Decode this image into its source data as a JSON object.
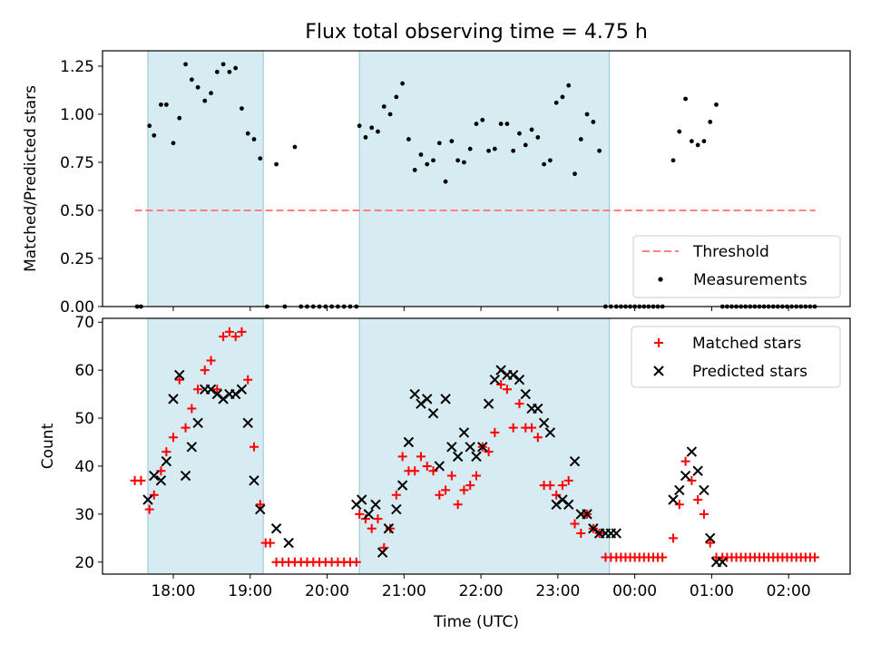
{
  "title": "Flux total observing time = 4.75 h",
  "chart_data": [
    {
      "type": "scatter",
      "ylabel": "Matched/Predicted stars",
      "xlabel": "",
      "xlim": [
        17.08,
        26.8
      ],
      "ylim": [
        0.0,
        1.33
      ],
      "yticks": [
        0.0,
        0.25,
        0.5,
        0.75,
        1.0,
        1.25
      ],
      "ytick_labels": [
        "0.00",
        "0.25",
        "0.50",
        "0.75",
        "1.00",
        "1.25"
      ],
      "shaded_spans": [
        [
          17.67,
          19.17
        ],
        [
          20.42,
          23.67
        ]
      ],
      "threshold": {
        "name": "Threshold",
        "y": 0.5,
        "x_range": [
          17.5,
          26.35
        ],
        "color": "#ff8080"
      },
      "series": [
        {
          "name": "Measurements",
          "marker": "dot",
          "color": "#000000",
          "x": [
            17.53,
            17.58,
            17.69,
            17.75,
            17.84,
            17.91,
            18.0,
            18.08,
            18.16,
            18.24,
            18.32,
            18.41,
            18.49,
            18.57,
            18.65,
            18.73,
            18.81,
            18.89,
            18.97,
            19.05,
            19.13,
            19.22,
            19.34,
            19.45,
            19.58,
            19.66,
            19.74,
            19.82,
            19.9,
            19.98,
            20.06,
            20.14,
            20.22,
            20.3,
            20.38,
            20.42,
            20.5,
            20.58,
            20.66,
            20.74,
            20.82,
            20.9,
            20.98,
            21.06,
            21.14,
            21.22,
            21.3,
            21.38,
            21.46,
            21.54,
            21.62,
            21.7,
            21.78,
            21.86,
            21.94,
            22.02,
            22.1,
            22.18,
            22.26,
            22.34,
            22.42,
            22.5,
            22.58,
            22.66,
            22.74,
            22.82,
            22.9,
            22.98,
            23.06,
            23.14,
            23.22,
            23.3,
            23.38,
            23.46,
            23.54,
            23.62,
            23.69,
            23.76,
            23.82,
            23.88,
            23.94,
            24.0,
            24.06,
            24.12,
            24.18,
            24.24,
            24.3,
            24.36,
            24.5,
            24.58,
            24.66,
            24.74,
            24.82,
            24.9,
            24.98,
            25.06,
            25.14,
            25.2,
            25.26,
            25.32,
            25.38,
            25.44,
            25.5,
            25.56,
            25.62,
            25.68,
            25.74,
            25.8,
            25.86,
            25.92,
            25.98,
            26.04,
            26.1,
            26.16,
            26.22,
            26.28,
            26.34
          ],
          "y": [
            0.0,
            0.0,
            0.94,
            0.89,
            1.05,
            1.05,
            0.85,
            0.98,
            1.26,
            1.18,
            1.14,
            1.07,
            1.11,
            1.22,
            1.26,
            1.22,
            1.24,
            1.03,
            0.9,
            0.87,
            0.77,
            0.0,
            0.74,
            0.0,
            0.83,
            0.0,
            0.0,
            0.0,
            0.0,
            0.0,
            0.0,
            0.0,
            0.0,
            0.0,
            0.0,
            0.94,
            0.88,
            0.93,
            0.91,
            1.04,
            1.0,
            1.09,
            1.16,
            0.87,
            0.71,
            0.79,
            0.74,
            0.76,
            0.85,
            0.65,
            0.86,
            0.76,
            0.75,
            0.82,
            0.95,
            0.97,
            0.81,
            0.82,
            0.95,
            0.95,
            0.81,
            0.9,
            0.84,
            0.92,
            0.88,
            0.74,
            0.76,
            1.06,
            1.09,
            1.15,
            0.69,
            0.87,
            1.0,
            0.96,
            0.81,
            0.0,
            0.0,
            0.0,
            0.0,
            0.0,
            0.0,
            0.0,
            0.0,
            0.0,
            0.0,
            0.0,
            0.0,
            0.0,
            0.76,
            0.91,
            1.08,
            0.86,
            0.84,
            0.86,
            0.96,
            1.05,
            0.0,
            0.0,
            0.0,
            0.0,
            0.0,
            0.0,
            0.0,
            0.0,
            0.0,
            0.0,
            0.0,
            0.0,
            0.0,
            0.0,
            0.0,
            0.0,
            0.0,
            0.0,
            0.0,
            0.0,
            0.0
          ]
        }
      ],
      "legend": {
        "placement": "lower-right",
        "entries": [
          "Threshold",
          "Measurements"
        ]
      }
    },
    {
      "type": "scatter",
      "xlabel": "Time (UTC)",
      "ylabel": "Count",
      "xlim": [
        17.08,
        26.8
      ],
      "ylim": [
        17.5,
        70.8
      ],
      "xticks": [
        18,
        19,
        20,
        21,
        22,
        23,
        24,
        25,
        26
      ],
      "xtick_labels": [
        "18:00",
        "19:00",
        "20:00",
        "21:00",
        "22:00",
        "23:00",
        "00:00",
        "01:00",
        "02:00"
      ],
      "yticks": [
        20,
        30,
        40,
        50,
        60,
        70
      ],
      "ytick_labels": [
        "20",
        "30",
        "40",
        "50",
        "60",
        "70"
      ],
      "shaded_spans": [
        [
          17.67,
          19.17
        ],
        [
          20.42,
          23.67
        ]
      ],
      "series": [
        {
          "name": "Matched stars",
          "marker": "plus",
          "color": "#ff0000",
          "x": [
            17.5,
            17.58,
            17.69,
            17.75,
            17.84,
            17.91,
            18.0,
            18.08,
            18.16,
            18.24,
            18.32,
            18.41,
            18.49,
            18.57,
            18.65,
            18.73,
            18.81,
            18.89,
            18.97,
            19.05,
            19.13,
            19.2,
            19.26,
            19.34,
            19.42,
            19.5,
            19.58,
            19.66,
            19.74,
            19.82,
            19.9,
            19.98,
            20.06,
            20.14,
            20.22,
            20.3,
            20.38,
            20.42,
            20.5,
            20.58,
            20.66,
            20.74,
            20.82,
            20.9,
            20.98,
            21.06,
            21.14,
            21.22,
            21.3,
            21.38,
            21.46,
            21.54,
            21.62,
            21.7,
            21.78,
            21.86,
            21.94,
            22.02,
            22.1,
            22.18,
            22.26,
            22.34,
            22.42,
            22.5,
            22.58,
            22.66,
            22.74,
            22.82,
            22.9,
            22.98,
            23.06,
            23.14,
            23.22,
            23.3,
            23.38,
            23.46,
            23.54,
            23.62,
            23.69,
            23.76,
            23.82,
            23.88,
            23.94,
            24.0,
            24.06,
            24.12,
            24.18,
            24.24,
            24.3,
            24.36,
            24.5,
            24.58,
            24.66,
            24.74,
            24.82,
            24.9,
            24.98,
            25.06,
            25.14,
            25.2,
            25.26,
            25.32,
            25.38,
            25.44,
            25.5,
            25.56,
            25.62,
            25.68,
            25.74,
            25.8,
            25.86,
            25.92,
            25.98,
            26.04,
            26.1,
            26.16,
            26.22,
            26.28,
            26.34
          ],
          "y": [
            37,
            37,
            31,
            34,
            39,
            43,
            46,
            58,
            48,
            52,
            56,
            60,
            62,
            56,
            67,
            68,
            67,
            68,
            58,
            44,
            32,
            24,
            24,
            20,
            20,
            20,
            20,
            20,
            20,
            20,
            20,
            20,
            20,
            20,
            20,
            20,
            20,
            30,
            29,
            27,
            29,
            23,
            27,
            34,
            42,
            39,
            39,
            42,
            40,
            39,
            34,
            35,
            38,
            32,
            35,
            36,
            38,
            44,
            43,
            47,
            57,
            56,
            48,
            53,
            48,
            48,
            46,
            36,
            36,
            34,
            36,
            37,
            28,
            26,
            30,
            27,
            26,
            21,
            21,
            21,
            21,
            21,
            21,
            21,
            21,
            21,
            21,
            21,
            21,
            21,
            25,
            32,
            41,
            37,
            33,
            30,
            24,
            21,
            21,
            21,
            21,
            21,
            21,
            21,
            21,
            21,
            21,
            21,
            21,
            21,
            21,
            21,
            21,
            21,
            21,
            21,
            21,
            21,
            21
          ]
        },
        {
          "name": "Predicted stars",
          "marker": "x",
          "color": "#000000",
          "x": [
            17.67,
            17.75,
            17.84,
            17.91,
            18.0,
            18.08,
            18.16,
            18.24,
            18.32,
            18.41,
            18.49,
            18.57,
            18.65,
            18.73,
            18.81,
            18.89,
            18.97,
            19.05,
            19.13,
            19.34,
            19.5,
            20.38,
            20.45,
            20.54,
            20.63,
            20.72,
            20.8,
            20.9,
            20.98,
            21.06,
            21.14,
            21.22,
            21.3,
            21.38,
            21.46,
            21.54,
            21.62,
            21.7,
            21.78,
            21.86,
            21.94,
            22.02,
            22.1,
            22.18,
            22.26,
            22.34,
            22.42,
            22.5,
            22.58,
            22.66,
            22.74,
            22.82,
            22.9,
            22.98,
            23.06,
            23.14,
            23.22,
            23.3,
            23.38,
            23.46,
            23.54,
            23.62,
            23.69,
            23.76,
            24.5,
            24.58,
            24.66,
            24.74,
            24.82,
            24.9,
            24.98,
            25.06,
            25.14
          ],
          "y": [
            33,
            38,
            37,
            41,
            54,
            59,
            38,
            44,
            49,
            56,
            56,
            55,
            54,
            55,
            55,
            56,
            49,
            37,
            31,
            27,
            24,
            32,
            33,
            30,
            32,
            22,
            27,
            31,
            36,
            45,
            55,
            53,
            54,
            51,
            40,
            54,
            44,
            42,
            47,
            44,
            42,
            44,
            53,
            58,
            60,
            59,
            59,
            58,
            55,
            52,
            52,
            49,
            47,
            32,
            33,
            32,
            41,
            30,
            30,
            27,
            26,
            26,
            26,
            26,
            33,
            35,
            38,
            43,
            39,
            35,
            25,
            20,
            20
          ]
        }
      ],
      "legend": {
        "placement": "upper-right",
        "entries": [
          "Matched stars",
          "Predicted stars"
        ]
      }
    }
  ]
}
